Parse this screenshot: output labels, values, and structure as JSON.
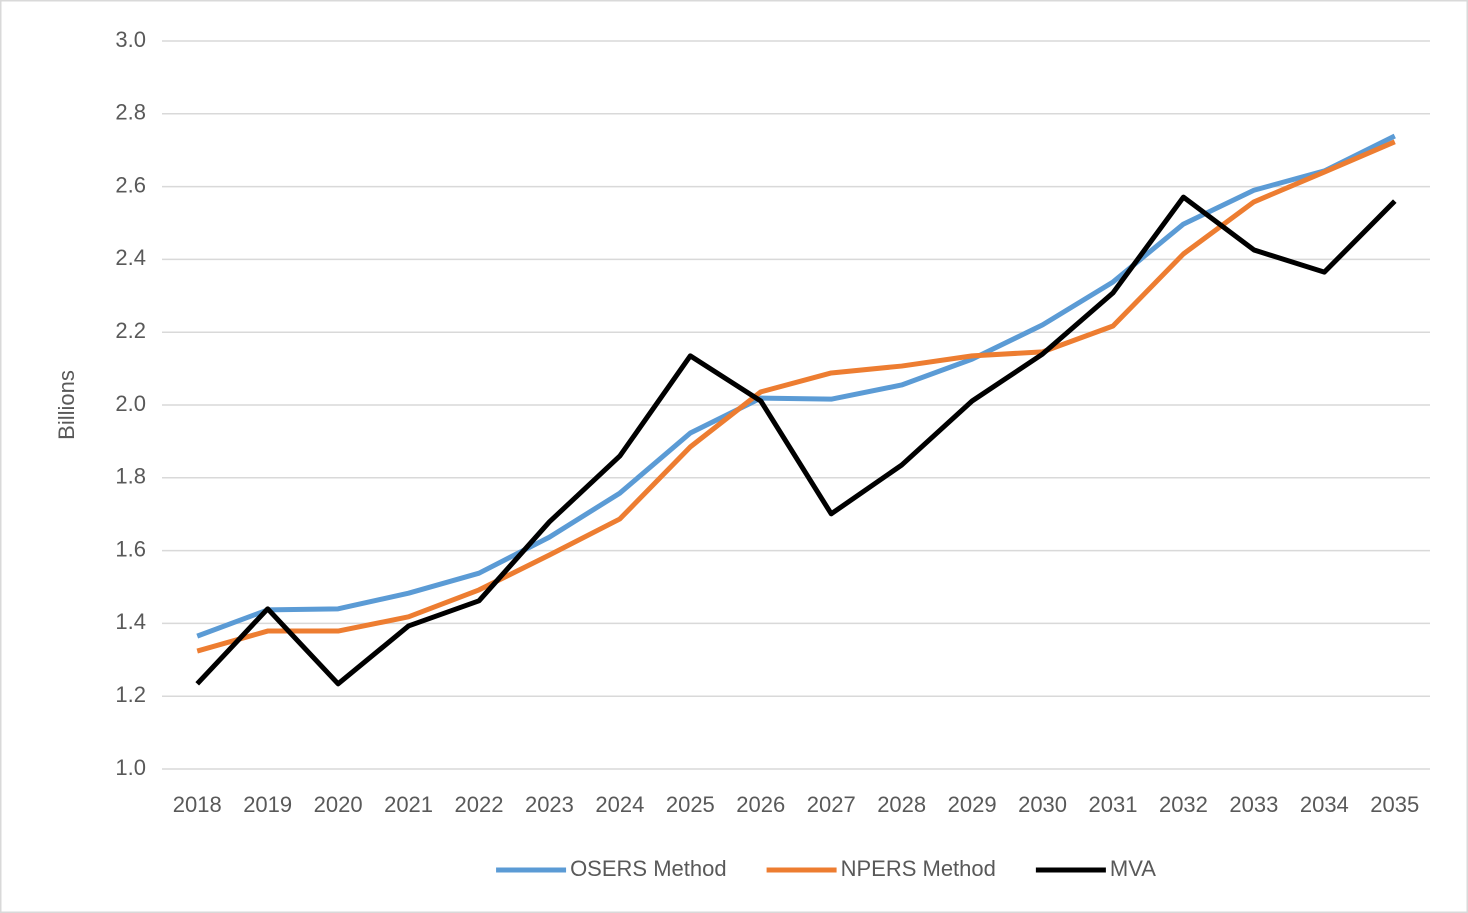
{
  "chart_data": {
    "type": "line",
    "y_label": "Billions",
    "categories": [
      "2018",
      "2019",
      "2020",
      "2021",
      "2022",
      "2023",
      "2024",
      "2025",
      "2026",
      "2027",
      "2028",
      "2029",
      "2030",
      "2031",
      "2032",
      "2033",
      "2034",
      "2035"
    ],
    "series": [
      {
        "name": "OSERS Method",
        "color": "#5b9bd5",
        "values": [
          1.365,
          1.437,
          1.44,
          1.483,
          1.538,
          1.637,
          1.758,
          1.923,
          2.019,
          2.016,
          2.055,
          2.126,
          2.22,
          2.338,
          2.497,
          2.59,
          2.643,
          2.739
        ]
      },
      {
        "name": "NPERS Method",
        "color": "#ed7d31",
        "values": [
          1.324,
          1.379,
          1.379,
          1.418,
          1.492,
          1.588,
          1.687,
          1.885,
          2.036,
          2.088,
          2.107,
          2.135,
          2.146,
          2.217,
          2.415,
          2.558,
          2.64,
          2.723
        ]
      },
      {
        "name": "MVA",
        "color": "#000000",
        "values": [
          1.234,
          1.44,
          1.234,
          1.393,
          1.462,
          1.679,
          1.86,
          2.135,
          2.011,
          1.701,
          1.835,
          2.011,
          2.14,
          2.308,
          2.571,
          2.426,
          2.365,
          2.56
        ]
      }
    ],
    "ylim": [
      1.0,
      3.0
    ],
    "yticks": [
      {
        "value": 1.0,
        "label": "1.0"
      },
      1.2,
      1.4,
      1.6,
      1.8,
      {
        "value": 2.0,
        "label": "2.0"
      },
      2.2,
      2.4,
      2.6,
      2.8,
      {
        "value": 3.0,
        "label": "3.0"
      }
    ],
    "grid": true,
    "legend": "bottom"
  }
}
